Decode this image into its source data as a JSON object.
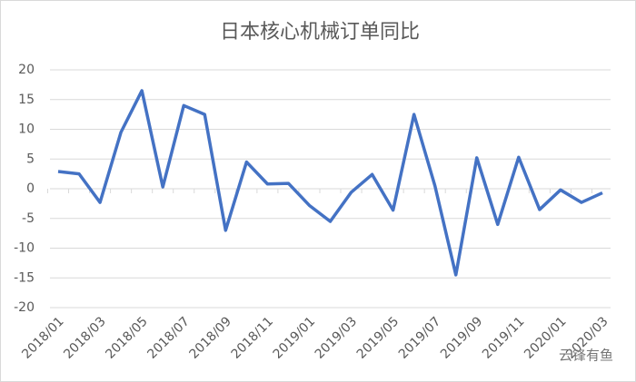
{
  "chart_data": {
    "type": "line",
    "title": "日本核心机械订单同比",
    "categories": [
      "2018/01",
      null,
      "2018/03",
      null,
      "2018/05",
      null,
      "2018/07",
      null,
      "2018/09",
      null,
      "2018/11",
      null,
      "2019/01",
      null,
      "2019/03",
      null,
      "2019/05",
      null,
      "2019/07",
      null,
      "2019/09",
      null,
      "2019/11",
      null,
      "2020/01",
      null,
      "2020/03"
    ],
    "series": [
      {
        "color": "#4472c4",
        "values": [
          2.9,
          2.5,
          -2.3,
          9.5,
          16.5,
          0.3,
          14,
          12.5,
          -7,
          4.5,
          0.8,
          0.9,
          -2.8,
          -5.5,
          -0.6,
          2.4,
          -3.6,
          12.5,
          0.5,
          -14.5,
          5.2,
          -6,
          5.3,
          -3.5,
          -0.2,
          -2.3,
          -0.7
        ]
      }
    ],
    "ylim": [
      -20,
      20
    ],
    "yticks": [
      -20,
      -15,
      -10,
      -5,
      0,
      5,
      10,
      15,
      20
    ],
    "grid": true
  },
  "watermark": "云锋有鱼"
}
